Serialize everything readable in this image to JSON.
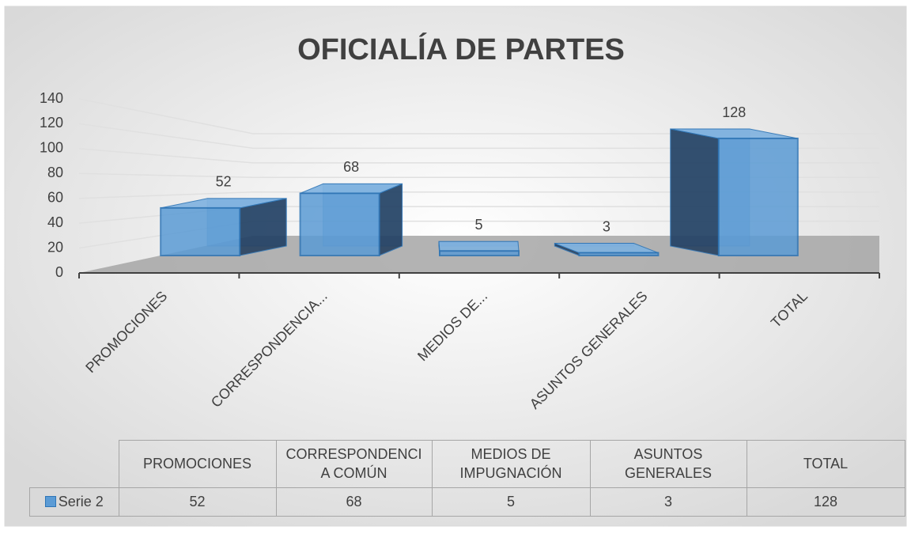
{
  "chart_data": {
    "type": "bar3d",
    "title": "OFICIALÍA DE PARTES",
    "categories": [
      "PROMOCIONES",
      "CORRESPONDENCIA...",
      "MEDIOS DE...",
      "ASUNTOS GENERALES",
      "TOTAL"
    ],
    "series": [
      {
        "name": "Serie 2",
        "color": "#5b9bd5",
        "values": [
          52,
          68,
          5,
          3,
          128
        ]
      }
    ],
    "ylim": [
      0,
      140
    ],
    "yticks": [
      0,
      20,
      40,
      60,
      80,
      100,
      120,
      140
    ],
    "grid": true,
    "data_table": {
      "columns": [
        "PROMOCIONES",
        "CORRESPONDENCIA COMÚN",
        "MEDIOS DE IMPUGNACIÓN",
        "ASUNTOS GENERALES",
        "TOTAL"
      ]
    }
  }
}
